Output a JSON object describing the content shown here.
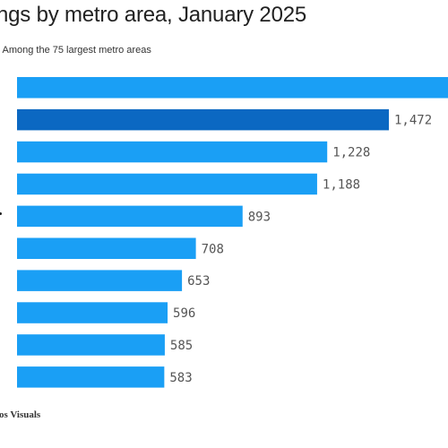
{
  "header": {
    "title": "ngs by metro area, January 2025",
    "subtitle": "; Among the 75 largest metro areas"
  },
  "footer": {
    "source": "ios Visuals"
  },
  "colors": {
    "bar": "#1a9ff5",
    "bar_highlight": "#0b68c2",
    "value_label": "#555555"
  },
  "chart_data": {
    "type": "bar",
    "orientation": "horizontal",
    "values": [
      null,
      1472,
      1228,
      1188,
      893,
      708,
      653,
      596,
      585,
      583
    ],
    "value_labels": [
      "",
      "1,472",
      "1,228",
      "1,188",
      "893",
      "708",
      "653",
      "596",
      "585",
      "583"
    ],
    "highlighted_index": 1,
    "xlim": [
      0,
      1760
    ],
    "grid": false,
    "legend": "none"
  }
}
